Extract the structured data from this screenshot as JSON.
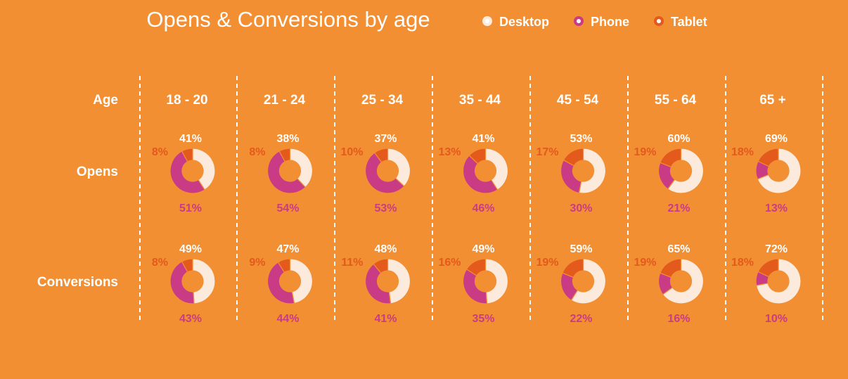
{
  "chart_data": {
    "type": "pie",
    "subtype": "donut-grid",
    "title": "Opens & Conversions by age",
    "row_header": "Age",
    "legend": [
      {
        "name": "Desktop",
        "color": "#FCEBDD"
      },
      {
        "name": "Phone",
        "color": "#C93C85"
      },
      {
        "name": "Tablet",
        "color": "#E35A1C"
      }
    ],
    "categories": [
      "18 - 20",
      "21 - 24",
      "25 - 34",
      "35 - 44",
      "45 - 54",
      "55 - 64",
      "65 +"
    ],
    "rows": [
      {
        "name": "Opens",
        "desktop": [
          41,
          38,
          37,
          41,
          53,
          60,
          69
        ],
        "phone": [
          51,
          54,
          53,
          46,
          30,
          21,
          13
        ],
        "tablet": [
          8,
          8,
          10,
          13,
          17,
          19,
          18
        ],
        "desktop_labels": [
          "41%",
          "38%",
          "37%",
          "41%",
          "53%",
          "60%",
          "69%"
        ],
        "phone_labels": [
          "51%",
          "54%",
          "53%",
          "46%",
          "30%",
          "21%",
          "13%"
        ],
        "tablet_labels": [
          "8%",
          "8%",
          "10%",
          "13%",
          "17%",
          "19%",
          "18%"
        ]
      },
      {
        "name": "Conversions",
        "desktop": [
          49,
          47,
          48,
          49,
          59,
          65,
          72
        ],
        "phone": [
          43,
          44,
          41,
          35,
          22,
          16,
          10
        ],
        "tablet": [
          8,
          9,
          11,
          16,
          19,
          19,
          18
        ],
        "desktop_labels": [
          "49%",
          "47%",
          "48%",
          "49%",
          "59%",
          "65%",
          "72%"
        ],
        "phone_labels": [
          "43%",
          "44%",
          "41%",
          "35%",
          "22%",
          "16%",
          "10%"
        ],
        "tablet_labels": [
          "8%",
          "9%",
          "11%",
          "16%",
          "19%",
          "19%",
          "18%"
        ]
      }
    ],
    "colors": {
      "background": "#F28F33",
      "desktop_label": "#FFFFFF",
      "phone_label": "#C93C85",
      "tablet_label": "#E35A1C"
    }
  }
}
